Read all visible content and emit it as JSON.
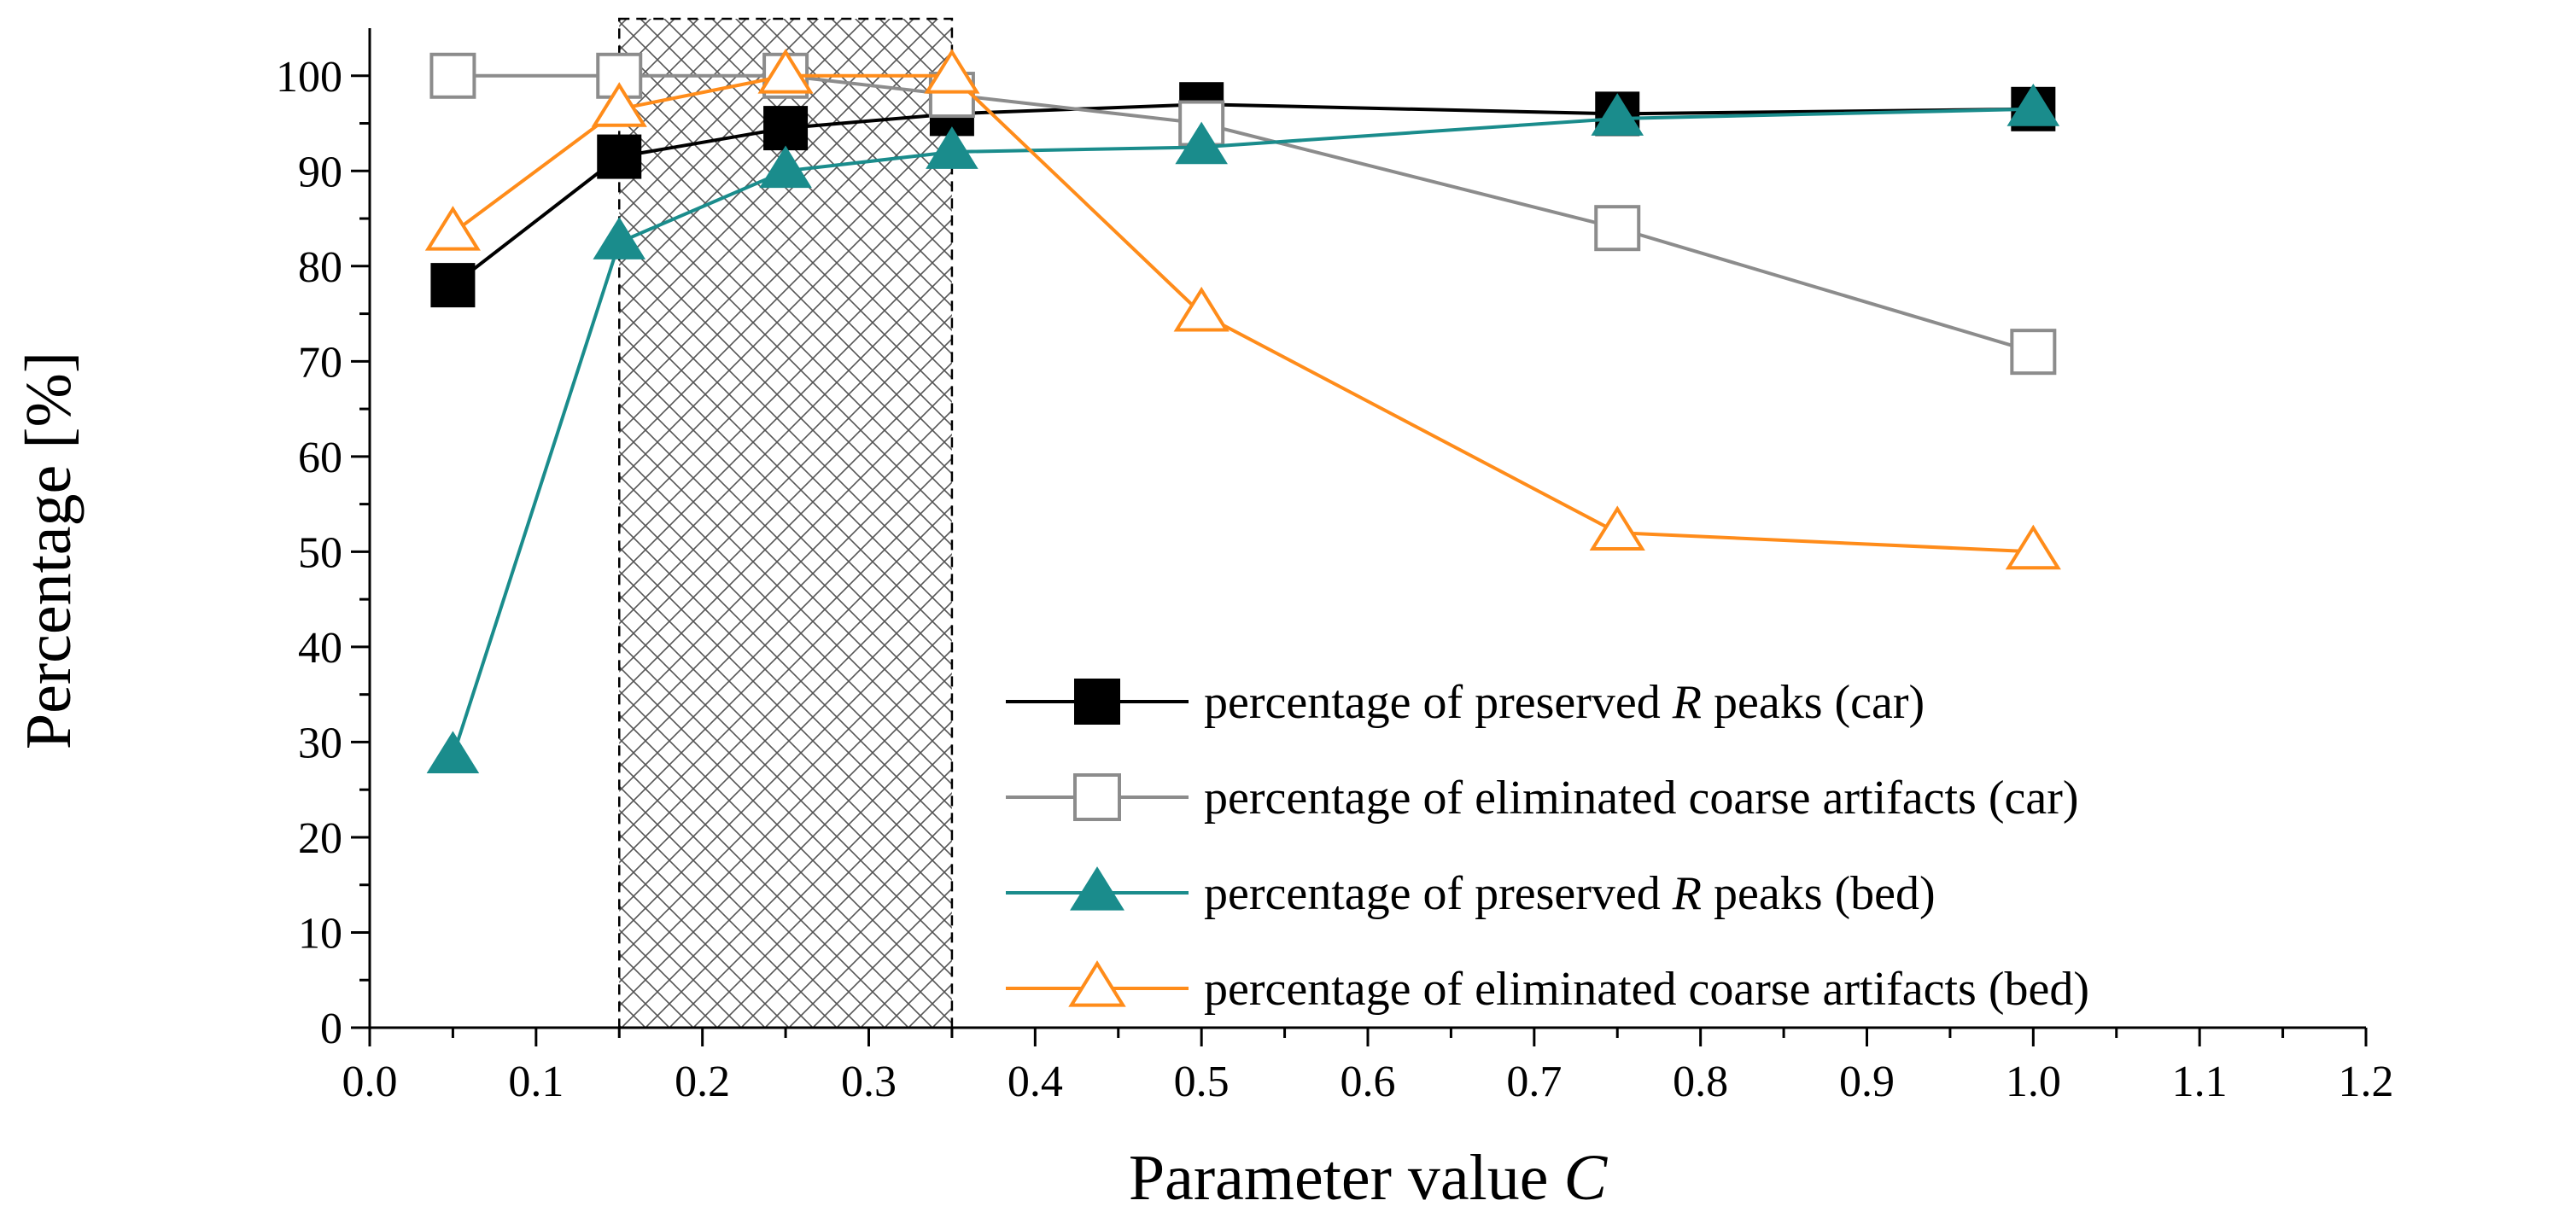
{
  "chart_data": {
    "type": "line",
    "title": "",
    "xlabel": "Parameter value",
    "xlabel_var": "C",
    "ylabel": "Percentage [%]",
    "xlim": [
      0.0,
      1.2
    ],
    "ylim": [
      0,
      105
    ],
    "x_ticks": [
      0.0,
      0.1,
      0.2,
      0.3,
      0.4,
      0.5,
      0.6,
      0.7,
      0.8,
      0.9,
      1.0,
      1.1,
      1.2
    ],
    "x_tick_labels": [
      "0.0",
      "0.1",
      "0.2",
      "0.3",
      "0.4",
      "0.5",
      "0.6",
      "0.7",
      "0.8",
      "0.9",
      "1.0",
      "1.1",
      "1.2"
    ],
    "y_ticks": [
      0,
      10,
      20,
      30,
      40,
      50,
      60,
      70,
      80,
      90,
      100
    ],
    "y_tick_labels": [
      "0",
      "10",
      "20",
      "30",
      "40",
      "50",
      "60",
      "70",
      "80",
      "90",
      "100"
    ],
    "grid": false,
    "legend_position": "bottom-right",
    "highlight_region": {
      "x_start": 0.15,
      "x_end": 0.35,
      "pattern": "crosshatch",
      "border": "dashed"
    },
    "x": [
      0.05,
      0.15,
      0.25,
      0.35,
      0.5,
      0.75,
      1.0
    ],
    "series": [
      {
        "name": "percentage of preserved R peaks (car)",
        "legend_parts": [
          "percentage of preserved ",
          "R",
          " peaks (car)"
        ],
        "color": "#000000",
        "marker": "square-filled",
        "values": [
          78,
          91.5,
          94.5,
          96,
          97,
          96,
          96.5
        ]
      },
      {
        "name": "percentage of eliminated coarse artifacts (car)",
        "legend_parts": [
          "percentage of eliminated coarse artifacts (car)",
          "",
          ""
        ],
        "color": "#8c8c8c",
        "marker": "square-open",
        "values": [
          100,
          100,
          100,
          98,
          95,
          84,
          71
        ]
      },
      {
        "name": "percentage of preserved R peaks (bed)",
        "legend_parts": [
          "percentage of preserved ",
          "R",
          " peaks (bed)"
        ],
        "color": "#1a8c8c",
        "marker": "triangle-filled",
        "values": [
          28.5,
          82.5,
          90,
          92,
          92.5,
          95.5,
          96.5
        ]
      },
      {
        "name": "percentage of eliminated coarse artifacts (bed)",
        "legend_parts": [
          "percentage of eliminated coarse artifacts (bed)",
          "",
          ""
        ],
        "color": "#ff8c1a",
        "marker": "triangle-open",
        "values": [
          83.5,
          96.5,
          100,
          100,
          75,
          52,
          50
        ]
      }
    ]
  }
}
